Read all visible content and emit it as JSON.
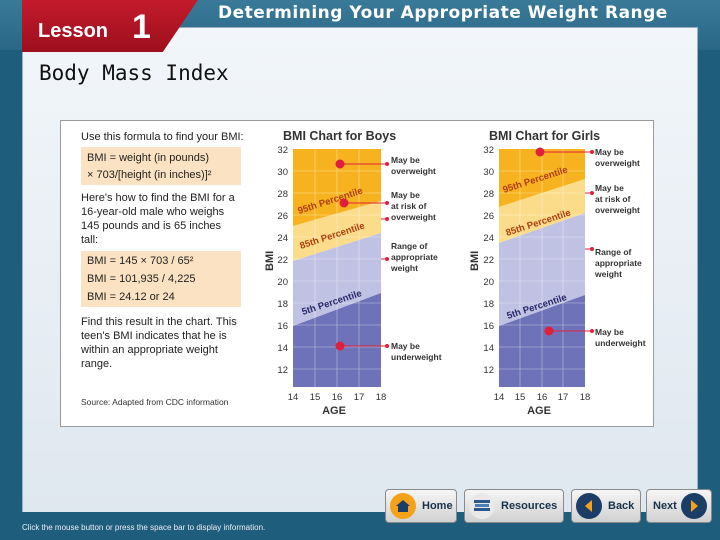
{
  "header": {
    "lesson_word": "Lesson",
    "lesson_number": "1",
    "title": "Determining Your Appropriate Weight Range"
  },
  "subtitle": "Body Mass Index",
  "figure": {
    "formula_intro": "Use this formula to find your BMI:",
    "formula_line1": "BMI  =  weight (in pounds)",
    "formula_line2": "×  703/[height (in inches)]²",
    "example_lines": [
      "Here's how to find the BMI for a",
      "16-year-old male who weighs",
      "145 pounds and is 65 inches",
      "tall:"
    ],
    "calc_line1": "BMI  =  145 × 703 / 65²",
    "calc_line2": "BMI  =  101,935 / 4,225",
    "calc_line3": "BMI  =  24.12 or 24",
    "result_lines": [
      "Find this result in the chart. This",
      "teen's BMI indicates that he is",
      "within an appropriate weight",
      "range."
    ],
    "source": "Source: Adapted from CDC information",
    "boys_title": "BMI Chart for Boys",
    "girls_title": "BMI Chart for Girls",
    "y_axis_label": "BMI",
    "x_axis_label": "AGE",
    "y_ticks": [
      "32",
      "30",
      "28",
      "26",
      "24",
      "22",
      "20",
      "18",
      "16",
      "14",
      "12"
    ],
    "x_ticks": [
      "14",
      "15",
      "16",
      "17",
      "18"
    ],
    "percentile_95": "95th Percentile",
    "percentile_85": "85th Percentile",
    "percentile_5": "5th Percentile",
    "boys_callouts": [
      [
        "May be",
        "overweight"
      ],
      [
        "May be",
        "at risk of",
        "overweight"
      ],
      [
        "Range of",
        "appropriate",
        "weight"
      ],
      [
        "May be",
        "underweight"
      ]
    ],
    "girls_callouts": [
      [
        "May be",
        "overweight"
      ],
      [
        "May be",
        "at risk of",
        "overweight"
      ],
      [
        "Range of",
        "appropriate",
        "weight"
      ],
      [
        "May be",
        "underweight"
      ]
    ]
  },
  "nav": {
    "home": "Home",
    "resources": "Resources",
    "back": "Back",
    "next": "Next"
  },
  "status": "Click the mouse button or press the space bar to display information.",
  "colors": {
    "orange": "#f6b31f",
    "yellow": "#fbdc8b",
    "lavender": "#bfc2e3",
    "indigo": "#6e72b8",
    "brand_red": "#b5172a"
  }
}
